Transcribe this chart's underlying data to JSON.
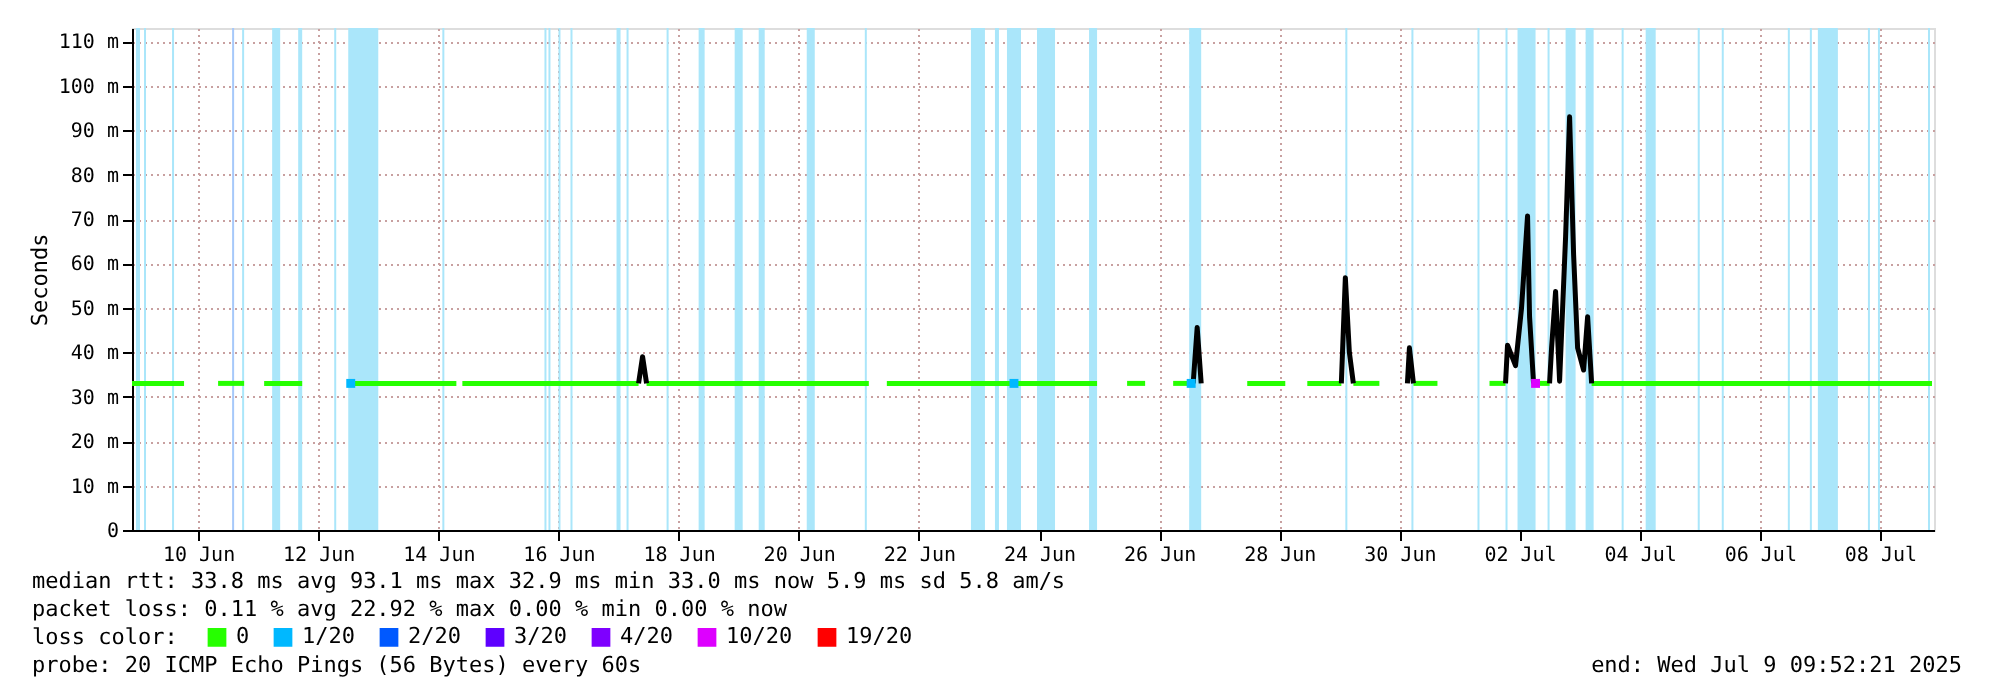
{
  "chart_data": {
    "type": "line",
    "ylabel": "Seconds",
    "legend_title": "loss color:",
    "legend": "bottom",
    "grid": true,
    "xlim": [
      "2025-06-09T09:36",
      "2025-07-09T09:36"
    ],
    "xticks": [
      {
        "value": "2025-06-10T12:00",
        "label": "10 Jun"
      },
      {
        "value": "2025-06-12T12:00",
        "label": "12 Jun"
      },
      {
        "value": "2025-06-14T12:00",
        "label": "14 Jun"
      },
      {
        "value": "2025-06-16T12:00",
        "label": "16 Jun"
      },
      {
        "value": "2025-06-18T12:00",
        "label": "18 Jun"
      },
      {
        "value": "2025-06-20T12:00",
        "label": "20 Jun"
      },
      {
        "value": "2025-06-22T12:00",
        "label": "22 Jun"
      },
      {
        "value": "2025-06-24T12:00",
        "label": "24 Jun"
      },
      {
        "value": "2025-06-26T12:00",
        "label": "26 Jun"
      },
      {
        "value": "2025-06-28T12:00",
        "label": "28 Jun"
      },
      {
        "value": "2025-06-30T12:00",
        "label": "30 Jun"
      },
      {
        "value": "2025-07-02T12:00",
        "label": "02 Jul"
      },
      {
        "value": "2025-07-04T12:00",
        "label": "04 Jul"
      },
      {
        "value": "2025-07-06T12:00",
        "label": "06 Jul"
      },
      {
        "value": "2025-07-08T12:00",
        "label": "08 Jul"
      }
    ],
    "ylim": [
      0,
      113
    ],
    "yticks": [
      0,
      {
        "value": 10,
        "label": "10 m"
      },
      {
        "value": 20,
        "label": "20 m"
      },
      {
        "value": 30,
        "label": "30 m"
      },
      {
        "value": 40,
        "label": "40 m"
      },
      {
        "value": 50,
        "label": "50 m"
      },
      {
        "value": 60,
        "label": "60 m"
      },
      {
        "value": 70,
        "label": "70 m"
      },
      {
        "value": 80,
        "label": "80 m"
      },
      {
        "value": 90,
        "label": "90 m"
      },
      {
        "value": 100,
        "label": "100 m"
      },
      {
        "value": 110,
        "label": "110 m"
      }
    ],
    "series": [
      {
        "name": "0",
        "color": "#26ff00",
        "x": [
          "2025-06-09T09:36",
          "2025-06-10T06:24",
          "2025-06-10T13:12",
          "2025-06-10T20:00",
          "2025-06-11T06:24",
          "2025-06-11T10:24",
          "2025-06-11T14:24",
          "2025-06-12T05:36",
          "2025-06-12T14:48",
          "2025-06-13T00:00",
          "2025-06-14T19:12",
          "2025-06-14T20:24",
          "2025-06-14T21:36",
          "2025-06-17T20:00",
          "2025-06-17T21:36",
          "2025-06-17T23:12",
          "2025-06-21T16:00",
          "2025-06-21T19:36",
          "2025-06-21T23:12",
          "2025-06-25T11:12",
          "2025-06-25T17:12",
          "2025-06-25T23:12",
          "2025-06-26T06:24",
          "2025-06-26T12:00",
          "2025-06-26T17:36",
          "2025-06-27T01:36",
          "2025-06-27T12:24",
          "2025-06-27T23:12",
          "2025-06-28T14:24",
          "2025-06-28T18:48",
          "2025-06-28T23:12",
          "2025-06-29T12:48",
          "2025-06-29T15:12",
          "2025-06-29T17:36",
          "2025-06-30T04:00",
          "2025-06-30T10:48",
          "2025-06-30T17:36",
          "2025-07-01T03:12",
          "2025-07-01T13:36",
          "2025-07-02T00:00",
          "2025-07-02T06:24",
          "2025-07-02T12:00",
          "2025-07-02T17:36",
          "2025-07-03T00:00",
          "2025-07-03T08:24",
          "2025-07-03T16:48",
          "2025-07-09T08:48"
        ],
        "values": [
          33,
          33,
          null,
          33,
          33,
          null,
          33,
          33,
          null,
          33,
          33,
          null,
          33,
          33,
          null,
          33,
          33,
          null,
          33,
          33,
          null,
          33,
          33,
          null,
          33,
          33,
          null,
          33,
          33,
          null,
          33,
          33,
          null,
          33,
          33,
          null,
          33,
          33,
          null,
          33,
          33,
          null,
          33,
          33,
          null,
          33,
          33
        ]
      },
      {
        "color": "#000000",
        "x": [
          "2025-06-17T20:00",
          "2025-06-17T21:36",
          "2025-06-17T23:12",
          "2025-06-18T00:00",
          "2025-06-27T01:36",
          "2025-06-27T03:12",
          "2025-06-27T04:48",
          "2025-06-28T00:00",
          "2025-06-29T12:48",
          "2025-06-29T14:24",
          "2025-06-29T16:00",
          "2025-06-29T17:36",
          "2025-06-30T00:00",
          "2025-06-30T15:12",
          "2025-06-30T16:00",
          "2025-06-30T17:36",
          "2025-07-01T00:00",
          "2025-07-02T06:24",
          "2025-07-02T07:12",
          "2025-07-02T10:24",
          "2025-07-02T12:48",
          "2025-07-02T15:12",
          "2025-07-02T16:00",
          "2025-07-02T17:36",
          "2025-07-02T20:00",
          "2025-07-03T00:00",
          "2025-07-03T00:48",
          "2025-07-03T02:24",
          "2025-07-03T04:00",
          "2025-07-03T06:24",
          "2025-07-03T08:00",
          "2025-07-03T09:36",
          "2025-07-03T11:12",
          "2025-07-03T13:36",
          "2025-07-03T15:12",
          "2025-07-03T16:48"
        ],
        "values": [
          33,
          39,
          33,
          null,
          33,
          45.6,
          33,
          null,
          33,
          56.8,
          40,
          33,
          null,
          33,
          41,
          33,
          null,
          33,
          41.6,
          37,
          50,
          70.7,
          48,
          33,
          null,
          33,
          41,
          53.7,
          33.5,
          66,
          93,
          62,
          41,
          36,
          48,
          33
        ]
      },
      {
        "name": "1/20",
        "color": "#00b8ff",
        "type": "scatter",
        "x": [
          "2025-06-13T01:00",
          "2025-06-24T02:00",
          "2025-06-27T00:48"
        ],
        "values": [
          33,
          33,
          33
        ]
      },
      {
        "name": "2/20",
        "color": "#0059ff",
        "type": "scatter"
      },
      {
        "name": "3/20",
        "color": "#5e00ff",
        "type": "scatter"
      },
      {
        "name": "4/20",
        "color": "#7e00ff",
        "type": "scatter"
      },
      {
        "name": "10/20",
        "color": "#dd00ff",
        "type": "scatter",
        "x": [
          "2025-07-02T18:24"
        ],
        "values": [
          33
        ]
      },
      {
        "name": "19/20",
        "color": "#ff0000",
        "type": "scatter"
      }
    ],
    "bands": [
      {
        "axis": "x",
        "from": "2025-06-09T11:12",
        "to": "2025-06-09T12:48",
        "color": "#aae6fa"
      },
      {
        "axis": "x",
        "from": "2025-06-09T14:24",
        "to": "2025-06-09T15:12",
        "color": "#aae6fa"
      },
      {
        "axis": "x",
        "from": "2025-06-10T01:36",
        "to": "2025-06-10T02:24",
        "color": "#aae6fa"
      },
      {
        "axis": "x",
        "from": "2025-06-11T01:36",
        "to": "2025-06-11T02:24",
        "color": "#a6c8fa"
      },
      {
        "axis": "x",
        "from": "2025-06-11T05:36",
        "to": "2025-06-11T06:24",
        "color": "#aae6fa"
      },
      {
        "axis": "x",
        "from": "2025-06-11T17:36",
        "to": "2025-06-11T20:48",
        "color": "#aae6fa"
      },
      {
        "axis": "x",
        "from": "2025-06-12T04:00",
        "to": "2025-06-12T05:36",
        "color": "#aae6fa"
      },
      {
        "axis": "x",
        "from": "2025-06-12T18:24",
        "to": "2025-06-12T19:12",
        "color": "#aae6fa"
      },
      {
        "axis": "x",
        "from": "2025-06-13T00:00",
        "to": "2025-06-13T12:00",
        "color": "#aae6fa"
      },
      {
        "axis": "x",
        "from": "2025-06-14T13:36",
        "to": "2025-06-14T14:24",
        "color": "#aae6fa"
      },
      {
        "axis": "x",
        "from": "2025-06-16T06:24",
        "to": "2025-06-16T07:12",
        "color": "#aae6fa"
      },
      {
        "axis": "x",
        "from": "2025-06-16T08:00",
        "to": "2025-06-16T08:48",
        "color": "#aae6fa"
      },
      {
        "axis": "x",
        "from": "2025-06-16T12:00",
        "to": "2025-06-16T12:48",
        "color": "#aae6fa"
      },
      {
        "axis": "x",
        "from": "2025-06-16T16:48",
        "to": "2025-06-16T17:36",
        "color": "#aae6fa"
      },
      {
        "axis": "x",
        "from": "2025-06-17T11:12",
        "to": "2025-06-17T12:48",
        "color": "#aae6fa"
      },
      {
        "axis": "x",
        "from": "2025-06-17T15:12",
        "to": "2025-06-17T16:00",
        "color": "#aae6fa"
      },
      {
        "axis": "x",
        "from": "2025-06-18T07:12",
        "to": "2025-06-18T08:00",
        "color": "#aae6fa"
      },
      {
        "axis": "x",
        "from": "2025-06-18T20:00",
        "to": "2025-06-18T22:24",
        "color": "#aae6fa"
      },
      {
        "axis": "x",
        "from": "2025-06-19T10:24",
        "to": "2025-06-19T13:36",
        "color": "#aae6fa"
      },
      {
        "axis": "x",
        "from": "2025-06-19T20:00",
        "to": "2025-06-19T22:24",
        "color": "#aae6fa"
      },
      {
        "axis": "x",
        "from": "2025-06-20T15:12",
        "to": "2025-06-20T18:24",
        "color": "#aae6fa"
      },
      {
        "axis": "x",
        "from": "2025-06-21T14:24",
        "to": "2025-06-21T15:12",
        "color": "#aae6fa"
      },
      {
        "axis": "x",
        "from": "2025-06-23T08:48",
        "to": "2025-06-23T14:24",
        "color": "#aae6fa"
      },
      {
        "axis": "x",
        "from": "2025-06-23T18:24",
        "to": "2025-06-23T20:00",
        "color": "#aae6fa"
      },
      {
        "axis": "x",
        "from": "2025-06-23T23:12",
        "to": "2025-06-24T04:48",
        "color": "#aae6fa"
      },
      {
        "axis": "x",
        "from": "2025-06-24T11:12",
        "to": "2025-06-24T18:24",
        "color": "#aae6fa"
      },
      {
        "axis": "x",
        "from": "2025-06-25T08:00",
        "to": "2025-06-25T11:12",
        "color": "#aae6fa"
      },
      {
        "axis": "x",
        "from": "2025-06-27T00:00",
        "to": "2025-06-27T04:48",
        "color": "#aae6fa"
      },
      {
        "axis": "x",
        "from": "2025-06-29T14:24",
        "to": "2025-06-29T15:12",
        "color": "#aae6fa"
      },
      {
        "axis": "x",
        "from": "2025-06-30T16:48",
        "to": "2025-06-30T17:36",
        "color": "#aae6fa"
      },
      {
        "axis": "x",
        "from": "2025-07-01T19:12",
        "to": "2025-07-01T20:00",
        "color": "#aae6fa"
      },
      {
        "axis": "x",
        "from": "2025-07-02T06:24",
        "to": "2025-07-02T07:12",
        "color": "#aae6fa"
      },
      {
        "axis": "x",
        "from": "2025-07-02T11:12",
        "to": "2025-07-02T18:24",
        "color": "#aae6fa"
      },
      {
        "axis": "x",
        "from": "2025-07-02T23:12",
        "to": "2025-07-03T00:00",
        "color": "#aae6fa"
      },
      {
        "axis": "x",
        "from": "2025-07-03T06:24",
        "to": "2025-07-03T10:24",
        "color": "#aae6fa"
      },
      {
        "axis": "x",
        "from": "2025-07-03T14:24",
        "to": "2025-07-03T17:36",
        "color": "#aae6fa"
      },
      {
        "axis": "x",
        "from": "2025-07-04T04:48",
        "to": "2025-07-04T05:36",
        "color": "#aae6fa"
      },
      {
        "axis": "x",
        "from": "2025-07-04T14:24",
        "to": "2025-07-04T18:24",
        "color": "#aae6fa"
      },
      {
        "axis": "x",
        "from": "2025-07-05T11:12",
        "to": "2025-07-05T12:00",
        "color": "#aae6fa"
      },
      {
        "axis": "x",
        "from": "2025-07-05T20:48",
        "to": "2025-07-05T21:36",
        "color": "#aae6fa"
      },
      {
        "axis": "x",
        "from": "2025-07-06T23:12",
        "to": "2025-07-07T00:00",
        "color": "#aae6fa"
      },
      {
        "axis": "x",
        "from": "2025-07-07T08:00",
        "to": "2025-07-07T08:48",
        "color": "#aae6fa"
      },
      {
        "axis": "x",
        "from": "2025-07-07T11:12",
        "to": "2025-07-07T19:12",
        "color": "#aae6fa"
      },
      {
        "axis": "x",
        "from": "2025-07-08T07:12",
        "to": "2025-07-08T08:00",
        "color": "#aae6fa"
      },
      {
        "axis": "x",
        "from": "2025-07-08T11:12",
        "to": "2025-07-08T12:00",
        "color": "#aae6fa"
      },
      {
        "axis": "x",
        "from": "2025-07-09T07:12",
        "to": "2025-07-09T08:00",
        "color": "#aae6fa"
      }
    ],
    "annotations": [
      "median rtt:  33.8 ms avg  93.1 ms max  32.9 ms min  33.0 ms now  5.9 ms sd  5.8   am/s",
      "packet loss: 0.11 % avg  22.92 % max  0.00 % min  0.00 % now",
      "probe:       20 ICMP Echo Pings (56 Bytes) every 60s",
      "end: Wed Jul  9 09:52:21 2025"
    ]
  }
}
